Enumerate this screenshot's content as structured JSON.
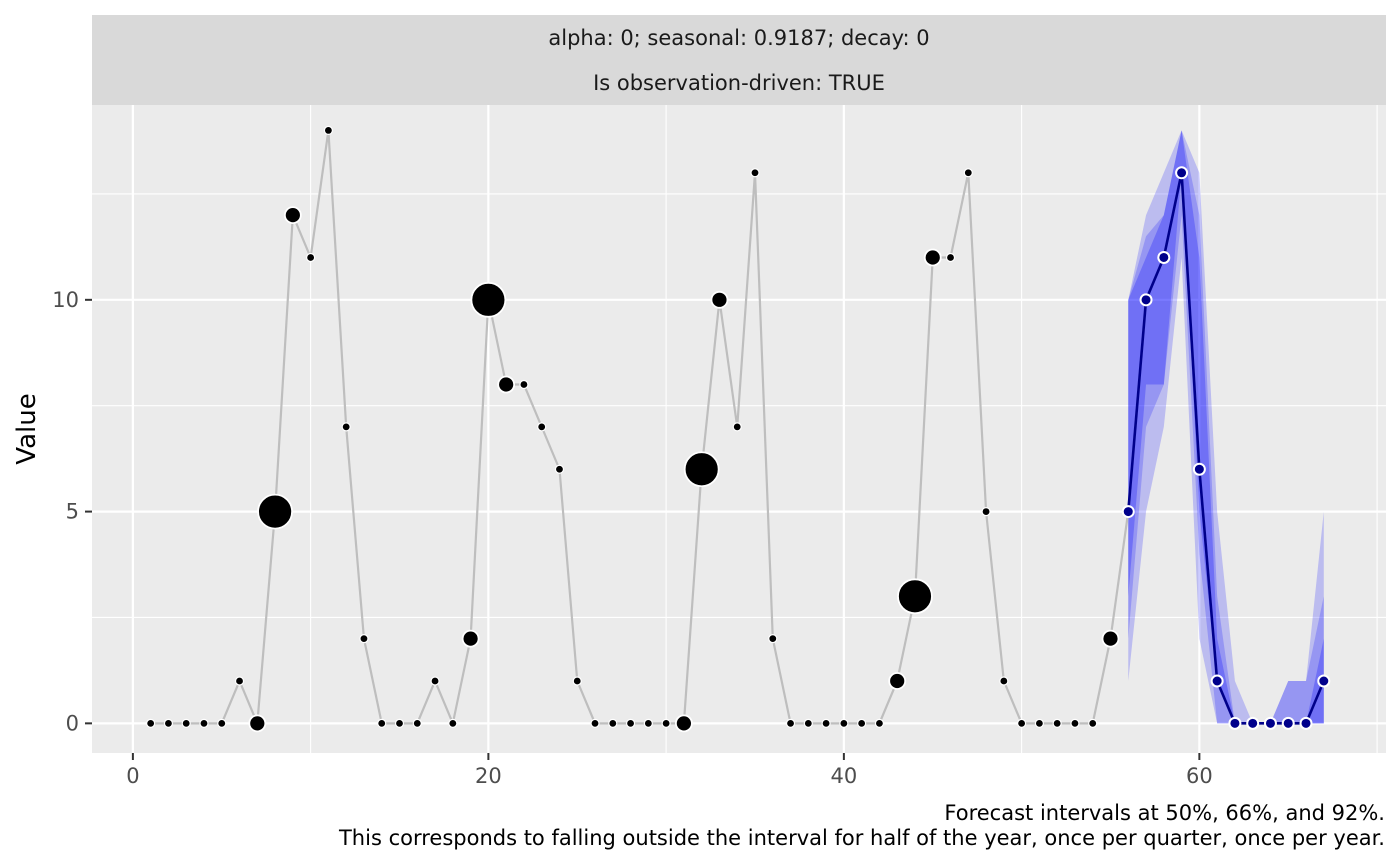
{
  "chart_data": {
    "type": "line",
    "strip_lines": [
      "alpha: 0; seasonal: 0.9187; decay: 0",
      "Is observation-driven: TRUE"
    ],
    "xlabel": "",
    "ylabel": "Value",
    "xlim": [
      -2.3,
      70.5
    ],
    "ylim": [
      -0.7,
      14.6
    ],
    "x_ticks": [
      0,
      20,
      40,
      60
    ],
    "y_ticks": [
      0,
      5,
      10
    ],
    "grid": true,
    "captions": [
      "Forecast intervals at 50%, 66%, and 92%.",
      "This corresponds to falling outside the interval for half of the year, once per quarter, once per year."
    ],
    "colors": {
      "panel_bg": "#ebebeb",
      "strip_bg": "#d9d9d9",
      "grid": "#ffffff",
      "actuals_line": "#bebebe",
      "actuals_point": "#000000",
      "forecast_line": "#00008b",
      "forecast_point": "#00008b",
      "interval_fill": "#0000ff"
    },
    "actuals": {
      "x": [
        1,
        2,
        3,
        4,
        5,
        6,
        7,
        8,
        9,
        10,
        11,
        12,
        13,
        14,
        15,
        16,
        17,
        18,
        19,
        20,
        21,
        22,
        23,
        24,
        25,
        26,
        27,
        28,
        29,
        30,
        31,
        32,
        33,
        34,
        35,
        36,
        37,
        38,
        39,
        40,
        41,
        42,
        43,
        44,
        45,
        46,
        47,
        48,
        49,
        50,
        51,
        52,
        53,
        54,
        55,
        56,
        57,
        58,
        59,
        60,
        61,
        62,
        63,
        64,
        65,
        66,
        67
      ],
      "y": [
        0,
        0,
        0,
        0,
        0,
        1,
        0,
        5,
        12,
        11,
        14,
        7,
        2,
        0,
        0,
        0,
        1,
        0,
        2,
        10,
        8,
        8,
        7,
        6,
        1,
        0,
        0,
        0,
        0,
        0,
        0,
        6,
        10,
        7,
        13,
        2,
        0,
        0,
        0,
        0,
        0,
        0,
        1,
        3,
        11,
        11,
        13,
        5,
        1,
        0,
        0,
        0,
        0,
        0,
        2,
        5,
        10,
        11,
        13,
        6,
        1,
        0,
        0,
        0,
        0,
        0,
        1
      ],
      "point_size": [
        1,
        1,
        1,
        1,
        1,
        1,
        2,
        4,
        2,
        1,
        1,
        1,
        1,
        1,
        1,
        1,
        1,
        1,
        2,
        4,
        2,
        1,
        1,
        1,
        1,
        1,
        1,
        1,
        1,
        1,
        2,
        4,
        2,
        1,
        1,
        1,
        1,
        1,
        1,
        1,
        1,
        1,
        2,
        4,
        2,
        1,
        1,
        1,
        1,
        1,
        1,
        1,
        1,
        1,
        2,
        1,
        1,
        1,
        1,
        1,
        1,
        1,
        1,
        1,
        1,
        1,
        1
      ]
    },
    "forecast": {
      "x": [
        56,
        57,
        58,
        59,
        60,
        61,
        62,
        63,
        64,
        65,
        66,
        67
      ],
      "y": [
        5,
        10,
        11,
        13,
        6,
        1,
        0,
        0,
        0,
        0,
        0,
        1
      ]
    },
    "intervals": [
      {
        "level": "92%",
        "x": [
          56,
          57,
          58,
          59,
          60,
          61,
          62,
          63,
          64,
          65,
          66,
          67
        ],
        "lower": [
          1,
          5,
          7,
          11,
          2,
          0,
          0,
          0,
          0,
          0,
          0,
          0
        ],
        "upper": [
          10,
          12,
          13,
          14,
          13,
          5,
          1,
          0,
          0,
          1,
          1,
          5
        ]
      },
      {
        "level": "66%",
        "x": [
          56,
          57,
          58,
          59,
          60,
          61,
          62,
          63,
          64,
          65,
          66,
          67
        ],
        "lower": [
          2,
          7,
          8,
          12,
          4,
          0,
          0,
          0,
          0,
          0,
          0,
          0
        ],
        "upper": [
          10,
          11.5,
          12,
          14,
          12,
          3,
          0,
          0,
          0,
          1,
          1,
          3
        ]
      },
      {
        "level": "50%",
        "x": [
          56,
          57,
          58,
          59,
          60,
          61,
          62,
          63,
          64,
          65,
          66,
          67
        ],
        "lower": [
          3,
          8,
          8,
          13,
          5,
          1,
          0,
          0,
          0,
          0,
          0,
          0
        ],
        "upper": [
          10,
          11,
          12,
          14,
          11,
          2,
          0,
          0,
          0,
          0,
          0,
          2
        ]
      }
    ]
  }
}
